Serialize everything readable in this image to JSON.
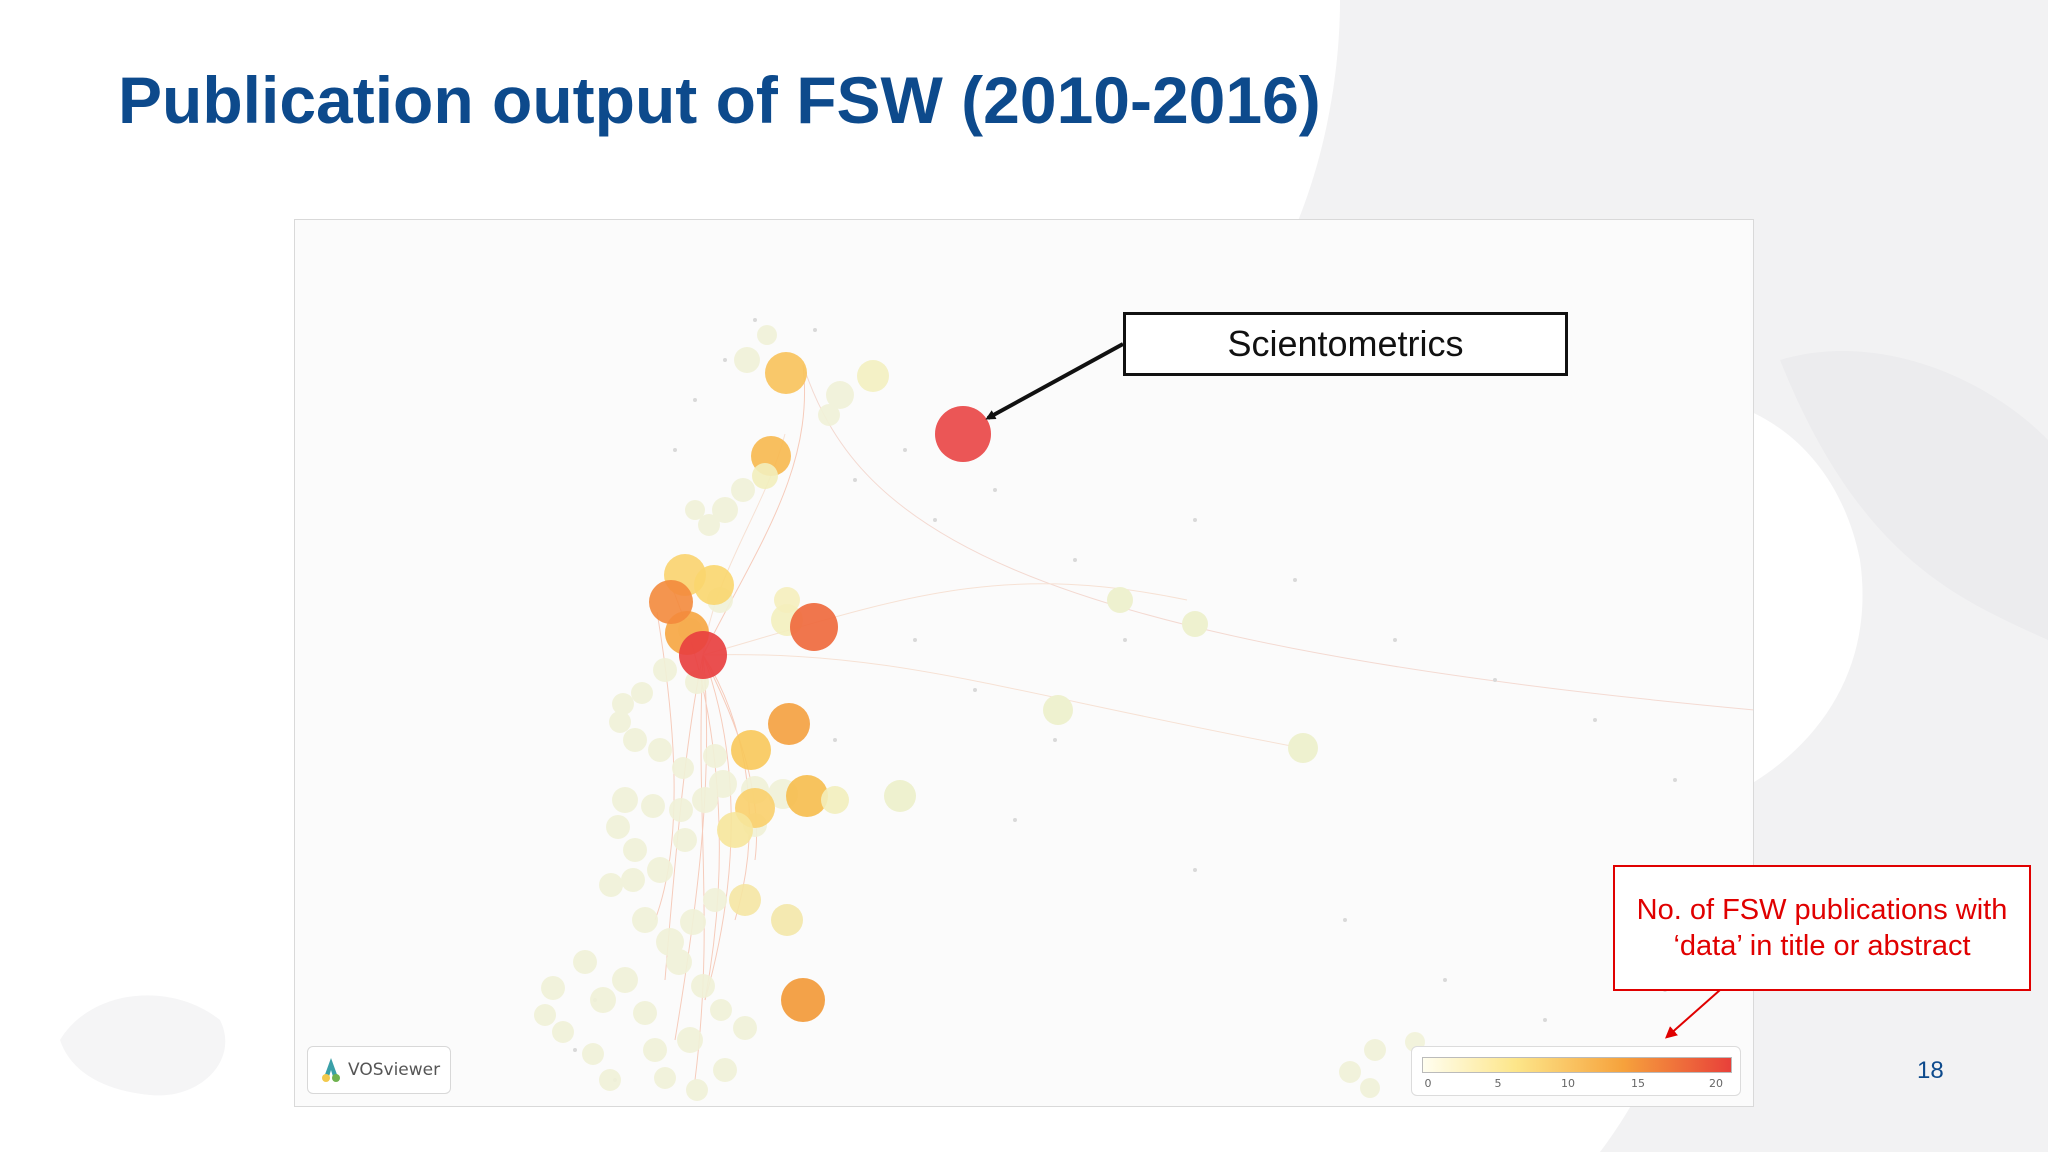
{
  "slide": {
    "title": "Publication output of FSW (2010-2016)",
    "page_number": "18",
    "title_color": "#0d4a8c"
  },
  "map": {
    "software_badge": "VOSviewer",
    "legend": {
      "ticks": [
        "0",
        "5",
        "10",
        "15",
        "20"
      ],
      "min": 0,
      "max": 20,
      "colors": [
        "#fffef0",
        "#fde68a",
        "#f6a23c",
        "#e8403a"
      ]
    }
  },
  "callouts": {
    "scientometrics": "Scientometrics",
    "legend_note": "No. of FSW publications with ‘data’ in title or abstract",
    "legend_note_color": "#e00000"
  }
}
